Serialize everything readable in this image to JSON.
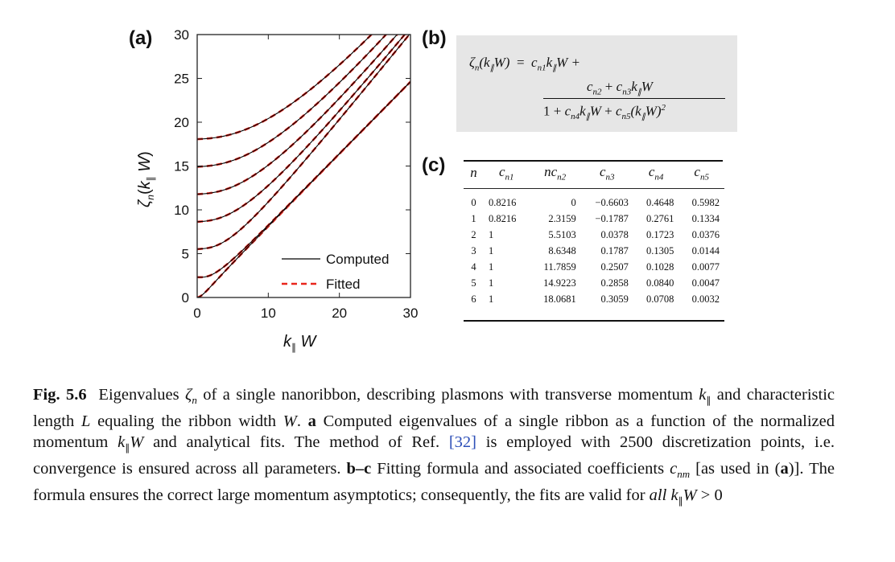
{
  "panels": {
    "a": {
      "label": "(a)",
      "legend": [
        "Computed",
        "Fitted"
      ],
      "x_ticks": [
        "0",
        "10",
        "20",
        "30"
      ],
      "y_ticks": [
        "0",
        "5",
        "10",
        "15",
        "20",
        "25",
        "30"
      ]
    },
    "b": {
      "label": "(b)"
    },
    "c": {
      "label": "(c)"
    }
  },
  "chart_data": {
    "type": "line",
    "xlabel": "k∥W",
    "ylabel": "ζn(k∥W)",
    "xlim": [
      0,
      30
    ],
    "ylim": [
      0,
      30
    ],
    "legend_position": "bottom-right",
    "series": [
      {
        "name": "Computed",
        "style": "solid",
        "color": "#000000"
      },
      {
        "name": "Fitted",
        "style": "dashed",
        "color": "#e8261c"
      }
    ],
    "curve_params": {
      "n": [
        0,
        1,
        2,
        3,
        4,
        5,
        6
      ],
      "c1": [
        0.8216,
        0.8216,
        1,
        1,
        1,
        1,
        1
      ],
      "nc2": [
        0,
        2.3159,
        5.5103,
        8.6348,
        11.7859,
        14.9223,
        18.0681
      ],
      "c3": [
        -0.6603,
        -0.1787,
        0.0378,
        0.1787,
        0.2507,
        0.2858,
        0.3059
      ],
      "c4": [
        0.4648,
        0.2761,
        0.1723,
        0.1305,
        0.1028,
        0.084,
        0.0708
      ],
      "c5": [
        0.5982,
        0.1334,
        0.0376,
        0.0144,
        0.0077,
        0.0047,
        0.0032
      ]
    }
  },
  "formula": {
    "lhs": "ζn(k∥W)",
    "first_term": "cn1 k∥W +",
    "numerator": "cn2 + cn3 k∥W",
    "denominator": "1 + cn4 k∥W + cn5 (k∥W)2"
  },
  "table": {
    "headers": [
      "n",
      "cn1",
      "ncn2",
      "cn3",
      "cn4",
      "cn5"
    ],
    "rows": [
      [
        "0",
        "0.8216",
        "0",
        "−0.6603",
        "0.4648",
        "0.5982"
      ],
      [
        "1",
        "0.8216",
        "2.3159",
        "−0.1787",
        "0.2761",
        "0.1334"
      ],
      [
        "2",
        "1",
        "5.5103",
        "0.0378",
        "0.1723",
        "0.0376"
      ],
      [
        "3",
        "1",
        "8.6348",
        "0.1787",
        "0.1305",
        "0.0144"
      ],
      [
        "4",
        "1",
        "11.7859",
        "0.2507",
        "0.1028",
        "0.0077"
      ],
      [
        "5",
        "1",
        "14.9223",
        "0.2858",
        "0.0840",
        "0.0047"
      ],
      [
        "6",
        "1",
        "18.0681",
        "0.3059",
        "0.0708",
        "0.0032"
      ]
    ]
  },
  "caption": {
    "fig_label": "Fig. 5.6",
    "text": "Eigenvalues ζn of a single nanoribbon, describing plasmons with transverse momentum k∥ and characteristic length L equaling the ribbon width W. a Computed eigenvalues of a single ribbon as a function of the normalized momentum k∥W and analytical fits. The method of Ref. [32] is employed with 2500 discretization points, i.e. convergence is ensured across all parameters. b–c Fitting formula and associated coefficients cnm [as used in (a)]. The formula ensures the correct large momentum asymptotics; consequently, the fits are valid for all k∥W > 0"
  }
}
